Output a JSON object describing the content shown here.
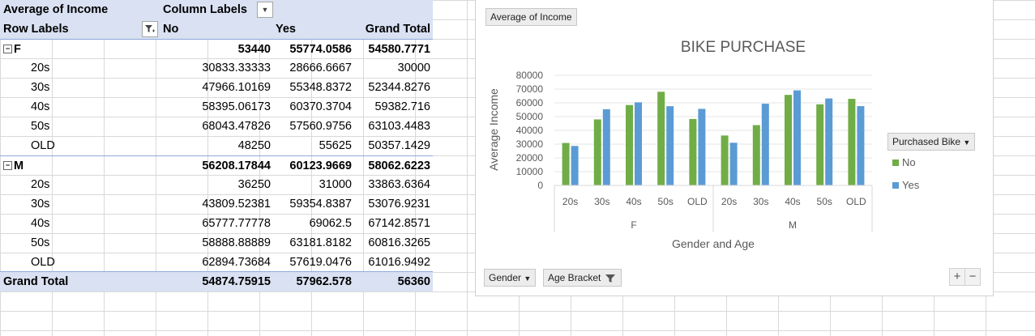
{
  "pivot": {
    "header1": {
      "label": "Average of Income",
      "column_labels": "Column Labels"
    },
    "header2": {
      "row_labels": "Row Labels",
      "no": "No",
      "yes": "Yes",
      "grand_total": "Grand Total"
    },
    "groups": [
      {
        "name": "F",
        "no": "53440",
        "yes": "55774.0586",
        "gt": "54580.7771",
        "rows": [
          {
            "label": "20s",
            "no": "30833.33333",
            "yes": "28666.6667",
            "gt": "30000"
          },
          {
            "label": "30s",
            "no": "47966.10169",
            "yes": "55348.8372",
            "gt": "52344.8276"
          },
          {
            "label": "40s",
            "no": "58395.06173",
            "yes": "60370.3704",
            "gt": "59382.716"
          },
          {
            "label": "50s",
            "no": "68043.47826",
            "yes": "57560.9756",
            "gt": "63103.4483"
          },
          {
            "label": "OLD",
            "no": "48250",
            "yes": "55625",
            "gt": "50357.1429"
          }
        ]
      },
      {
        "name": "M",
        "no": "56208.17844",
        "yes": "60123.9669",
        "gt": "58062.6223",
        "rows": [
          {
            "label": "20s",
            "no": "36250",
            "yes": "31000",
            "gt": "33863.6364"
          },
          {
            "label": "30s",
            "no": "43809.52381",
            "yes": "59354.8387",
            "gt": "53076.9231"
          },
          {
            "label": "40s",
            "no": "65777.77778",
            "yes": "69062.5",
            "gt": "67142.8571"
          },
          {
            "label": "50s",
            "no": "58888.88889",
            "yes": "63181.8182",
            "gt": "60816.3265"
          },
          {
            "label": "OLD",
            "no": "62894.73684",
            "yes": "57619.0476",
            "gt": "61016.9492"
          }
        ]
      }
    ],
    "grand_total": {
      "label": "Grand Total",
      "no": "54874.75915",
      "yes": "57962.578",
      "gt": "56360"
    }
  },
  "chart_ui": {
    "value_field_button": "Average of Income",
    "gender_button": "Gender",
    "age_button": "Age Bracket",
    "legend_title": "Purchased Bike",
    "zoom_in": "+",
    "zoom_out": "−"
  },
  "colors": {
    "no": "#70ad47",
    "yes": "#5b9bd5",
    "header_bg": "#d9e1f2"
  },
  "chart_data": {
    "type": "bar",
    "title": "BIKE PURCHASE",
    "xlabel": "Gender and Age",
    "ylabel": "Average Income",
    "ylim": [
      0,
      80000
    ],
    "yticks": [
      "0",
      "10000",
      "20000",
      "30000",
      "40000",
      "50000",
      "60000",
      "70000",
      "80000"
    ],
    "groups": [
      "F",
      "M"
    ],
    "categories": [
      "20s",
      "30s",
      "40s",
      "50s",
      "OLD",
      "20s",
      "30s",
      "40s",
      "50s",
      "OLD"
    ],
    "series": [
      {
        "name": "No",
        "values": [
          30833.33,
          47966.1,
          58395.06,
          68043.48,
          48250,
          36250,
          43809.52,
          65777.78,
          58888.89,
          62894.74
        ]
      },
      {
        "name": "Yes",
        "values": [
          28666.67,
          55348.84,
          60370.37,
          57560.98,
          55625,
          31000,
          59354.84,
          69062.5,
          63181.82,
          57619.05
        ]
      }
    ],
    "grid": true,
    "legend": "right"
  }
}
